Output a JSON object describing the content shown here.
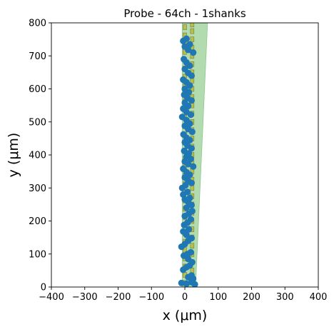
{
  "chart_data": {
    "type": "scatter",
    "title": "Probe - 64ch - 1shanks",
    "xlabel": "x (μm)",
    "ylabel": "y (μm)",
    "xlim": [
      -400,
      400
    ],
    "ylim": [
      0,
      800
    ],
    "xticks": [
      -400,
      -300,
      -200,
      -100,
      0,
      100,
      200,
      300,
      400
    ],
    "yticks": [
      0,
      100,
      200,
      300,
      400,
      500,
      600,
      700,
      800
    ],
    "xtick_labels": [
      "−400",
      "−300",
      "−200",
      "−100",
      "0",
      "100",
      "200",
      "300",
      "400"
    ],
    "ytick_labels": [
      "0",
      "100",
      "200",
      "300",
      "400",
      "500",
      "600",
      "700",
      "800"
    ],
    "grid": false,
    "colors": {
      "shank_fill": "#b3dbb0",
      "shank_edge": "#8cc98a",
      "contact_fill": "#b4c04e",
      "contact_edge": "#7a7a3a",
      "point": "#1f77b4"
    },
    "shank_polygon": [
      [
        -8,
        0
      ],
      [
        -8,
        800
      ],
      [
        68,
        800
      ],
      [
        32,
        0
      ]
    ],
    "contacts": [
      {
        "column_x": 0,
        "y": [
          12,
          37,
          62,
          87,
          112,
          137,
          162,
          187,
          212,
          237,
          262,
          287,
          312,
          337,
          362,
          387,
          412,
          437,
          462,
          487,
          512,
          537,
          562,
          587,
          612,
          637,
          662,
          687,
          712,
          737,
          762,
          787
        ]
      },
      {
        "column_x": 22,
        "y": [
          25,
          50,
          75,
          100,
          125,
          150,
          175,
          200,
          225,
          250,
          275,
          300,
          325,
          350,
          375,
          400,
          425,
          450,
          475,
          500,
          525,
          550,
          575,
          600,
          625,
          650,
          675,
          700,
          725,
          750,
          775,
          795
        ]
      }
    ],
    "series": [
      {
        "points": [
          [
            -10,
            12
          ],
          [
            5,
            10
          ],
          [
            20,
            15
          ],
          [
            30,
            8
          ],
          [
            25,
            25
          ],
          [
            10,
            30
          ],
          [
            20,
            35
          ],
          [
            -5,
            52
          ],
          [
            5,
            60
          ],
          [
            15,
            65
          ],
          [
            22,
            75
          ],
          [
            10,
            85
          ],
          [
            -3,
            95
          ],
          [
            8,
            100
          ],
          [
            18,
            105
          ],
          [
            -10,
            122
          ],
          [
            0,
            130
          ],
          [
            10,
            140
          ],
          [
            20,
            148
          ],
          [
            5,
            158
          ],
          [
            -5,
            168
          ],
          [
            12,
            175
          ],
          [
            -2,
            188
          ],
          [
            8,
            195
          ],
          [
            18,
            205
          ],
          [
            0,
            215
          ],
          [
            12,
            222
          ],
          [
            22,
            230
          ],
          [
            5,
            240
          ],
          [
            20,
            248
          ],
          [
            10,
            258
          ],
          [
            0,
            265
          ],
          [
            15,
            270
          ],
          [
            -5,
            280
          ],
          [
            8,
            288
          ],
          [
            -8,
            300
          ],
          [
            2,
            308
          ],
          [
            20,
            315
          ],
          [
            10,
            322
          ],
          [
            0,
            332
          ],
          [
            15,
            340
          ],
          [
            5,
            348
          ],
          [
            -5,
            358
          ],
          [
            25,
            365
          ],
          [
            10,
            372
          ],
          [
            0,
            380
          ],
          [
            18,
            388
          ],
          [
            5,
            395
          ],
          [
            12,
            405
          ],
          [
            -2,
            412
          ],
          [
            20,
            420
          ],
          [
            8,
            428
          ],
          [
            0,
            438
          ],
          [
            15,
            445
          ],
          [
            5,
            452
          ],
          [
            -4,
            462
          ],
          [
            22,
            470
          ],
          [
            10,
            478
          ],
          [
            0,
            488
          ],
          [
            15,
            495
          ],
          [
            5,
            505
          ],
          [
            -8,
            515
          ],
          [
            18,
            522
          ],
          [
            5,
            530
          ],
          [
            -5,
            540
          ],
          [
            10,
            548
          ],
          [
            0,
            558
          ],
          [
            20,
            565
          ],
          [
            8,
            572
          ],
          [
            -2,
            582
          ],
          [
            12,
            590
          ],
          [
            0,
            600
          ],
          [
            15,
            610
          ],
          [
            5,
            620
          ],
          [
            -5,
            628
          ],
          [
            20,
            640
          ],
          [
            10,
            648
          ],
          [
            0,
            660
          ],
          [
            15,
            670
          ],
          [
            5,
            680
          ],
          [
            -3,
            690
          ],
          [
            25,
            710
          ],
          [
            10,
            718
          ],
          [
            0,
            728
          ],
          [
            15,
            735
          ],
          [
            -5,
            745
          ],
          [
            5,
            752
          ]
        ]
      }
    ]
  }
}
